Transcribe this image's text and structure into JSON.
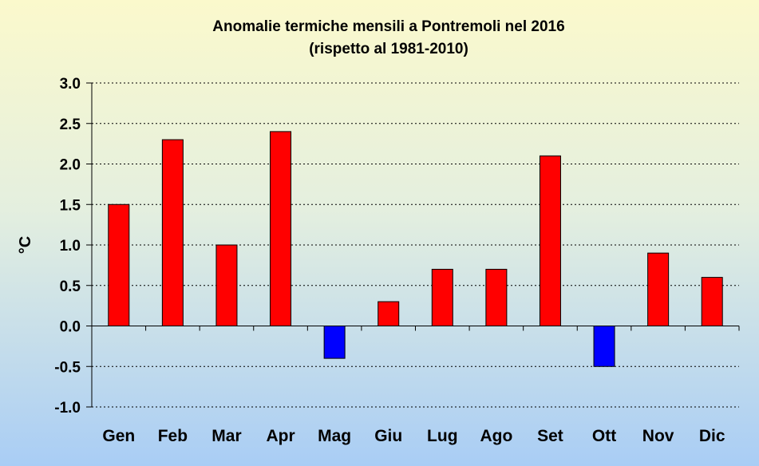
{
  "chart_data": {
    "type": "bar",
    "title": "Anomalie termiche mensili a Pontremoli nel 2016",
    "subtitle": "(rispetto al 1981-2010)",
    "ylabel": "°C",
    "xlabel": "",
    "categories": [
      "Gen",
      "Feb",
      "Mar",
      "Apr",
      "Mag",
      "Giu",
      "Lug",
      "Ago",
      "Set",
      "Ott",
      "Nov",
      "Dic"
    ],
    "values": [
      1.5,
      2.3,
      1.0,
      2.4,
      -0.4,
      0.3,
      0.7,
      0.7,
      2.1,
      -0.5,
      0.9,
      0.6
    ],
    "ylim": [
      -1.0,
      3.0
    ],
    "yticks": [
      "3.0",
      "2.5",
      "2.0",
      "1.5",
      "1.0",
      "0.5",
      "0.0",
      "-0.5",
      "-1.0"
    ],
    "grid": true,
    "legend": "none",
    "colors": {
      "positive": "#ff0000",
      "negative": "#0000ff",
      "outline": "#000000"
    }
  }
}
